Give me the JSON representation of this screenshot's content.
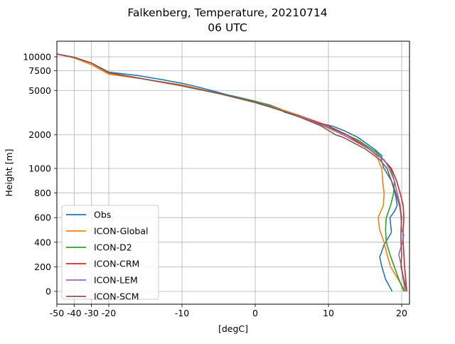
{
  "chart_data": {
    "type": "line",
    "title": "Falkenberg, Temperature, 20210714",
    "subtitle": "06 UTC",
    "xlabel": "[degC]",
    "ylabel": "Height [m]",
    "xlim": [
      -50,
      21
    ],
    "x_ticks": [
      -50,
      -40,
      -30,
      -20,
      -10,
      0,
      10,
      20
    ],
    "x_tick_labels": [
      "-50",
      "-40",
      "-30",
      "-20",
      "-10",
      "0",
      "10",
      "20"
    ],
    "y_ticks": [
      0,
      200,
      400,
      600,
      800,
      1000,
      2000,
      5000,
      7500,
      10000
    ],
    "y_tick_labels": [
      "0",
      "200",
      "400",
      "600",
      "800",
      "1000",
      "2000",
      "5000",
      "7500",
      "10000"
    ],
    "y_scale": "piecewise: linear 0-1000 m, logarithmic above 1000 m",
    "grid": true,
    "legend_position": "lower-left",
    "series": [
      {
        "name": "Obs",
        "color": "#1f77b4",
        "points": [
          [
            18.7,
            0
          ],
          [
            17.8,
            100
          ],
          [
            17.3,
            200
          ],
          [
            17.0,
            280
          ],
          [
            17.6,
            380
          ],
          [
            18.2,
            440
          ],
          [
            18.6,
            480
          ],
          [
            18.4,
            600
          ],
          [
            19.0,
            650
          ],
          [
            19.4,
            700
          ],
          [
            19.1,
            800
          ],
          [
            18.6,
            900
          ],
          [
            17.5,
            1020
          ],
          [
            17.4,
            1100
          ],
          [
            17.2,
            1200
          ],
          [
            17.3,
            1300
          ],
          [
            16.2,
            1500
          ],
          [
            14.0,
            1900
          ],
          [
            12.0,
            2200
          ],
          [
            10.5,
            2400
          ],
          [
            8.0,
            2600
          ],
          [
            6.0,
            2900
          ],
          [
            4.0,
            3200
          ],
          [
            3.5,
            3400
          ],
          [
            2.0,
            3700
          ],
          [
            0.0,
            4000
          ],
          [
            -2.0,
            4300
          ],
          [
            -4.0,
            4600
          ],
          [
            -6.0,
            5000
          ],
          [
            -8.0,
            5400
          ],
          [
            -10.0,
            5800
          ],
          [
            -13.0,
            6300
          ],
          [
            -16.0,
            6800
          ],
          [
            -20.0,
            7300
          ],
          [
            -30.0,
            8800
          ],
          [
            -40.0,
            9800
          ],
          [
            -50.0,
            10600
          ]
        ]
      },
      {
        "name": "ICON-Global",
        "color": "#ff7f0e",
        "points": [
          [
            20.5,
            0
          ],
          [
            19.5,
            100
          ],
          [
            18.5,
            200
          ],
          [
            18.0,
            300
          ],
          [
            17.6,
            400
          ],
          [
            17.0,
            500
          ],
          [
            16.8,
            600
          ],
          [
            17.5,
            700
          ],
          [
            17.6,
            800
          ],
          [
            17.4,
            900
          ],
          [
            17.3,
            1000
          ],
          [
            17.0,
            1100
          ],
          [
            16.6,
            1300
          ],
          [
            15.0,
            1600
          ],
          [
            12.5,
            2000
          ],
          [
            10.0,
            2400
          ],
          [
            6.0,
            3000
          ],
          [
            0.0,
            4000
          ],
          [
            -5.0,
            4700
          ],
          [
            -10.0,
            5600
          ],
          [
            -15.0,
            6300
          ],
          [
            -20.0,
            7000
          ],
          [
            -30.0,
            8500
          ],
          [
            -40.0,
            9800
          ],
          [
            -50.0,
            10600
          ]
        ]
      },
      {
        "name": "ICON-D2",
        "color": "#2ca02c",
        "points": [
          [
            20.3,
            0
          ],
          [
            19.6,
            100
          ],
          [
            19.0,
            200
          ],
          [
            18.4,
            300
          ],
          [
            17.9,
            400
          ],
          [
            17.8,
            500
          ],
          [
            17.9,
            600
          ],
          [
            18.5,
            700
          ],
          [
            18.9,
            800
          ],
          [
            19.0,
            900
          ],
          [
            18.5,
            1000
          ],
          [
            17.5,
            1200
          ],
          [
            16.5,
            1400
          ],
          [
            14.0,
            1800
          ],
          [
            11.0,
            2200
          ],
          [
            8.0,
            2600
          ],
          [
            5.0,
            3100
          ],
          [
            2.0,
            3600
          ],
          [
            0.0,
            4000
          ],
          [
            -5.0,
            4700
          ],
          [
            -10.0,
            5500
          ],
          [
            -15.0,
            6300
          ],
          [
            -20.0,
            7200
          ],
          [
            -30.0,
            8800
          ],
          [
            -40.0,
            9900
          ],
          [
            -50.0,
            10600
          ]
        ]
      },
      {
        "name": "ICON-CRM",
        "color": "#d62728",
        "points": [
          [
            20.7,
            0
          ],
          [
            20.4,
            200
          ],
          [
            20.2,
            400
          ],
          [
            20.2,
            500
          ],
          [
            20.3,
            600
          ],
          [
            20.2,
            700
          ],
          [
            19.8,
            800
          ],
          [
            19.3,
            900
          ],
          [
            18.6,
            1000
          ],
          [
            17.5,
            1200
          ],
          [
            15.5,
            1500
          ],
          [
            12.5,
            2000
          ],
          [
            10.0,
            2400
          ],
          [
            7.0,
            2800
          ],
          [
            3.0,
            3400
          ],
          [
            0.0,
            3900
          ],
          [
            -5.0,
            4700
          ],
          [
            -10.0,
            5500
          ],
          [
            -15.0,
            6300
          ],
          [
            -20.0,
            7200
          ],
          [
            -30.0,
            8800
          ],
          [
            -40.0,
            9900
          ],
          [
            -50.0,
            10600
          ]
        ]
      },
      {
        "name": "ICON-LEM",
        "color": "#9467bd",
        "points": [
          [
            20.5,
            0
          ],
          [
            20.2,
            100
          ],
          [
            20.0,
            200
          ],
          [
            19.6,
            300
          ],
          [
            20.1,
            400
          ],
          [
            20.3,
            460
          ],
          [
            20.0,
            500
          ],
          [
            19.9,
            600
          ],
          [
            19.8,
            700
          ],
          [
            19.4,
            800
          ],
          [
            19.0,
            900
          ],
          [
            18.3,
            1000
          ],
          [
            17.6,
            1200
          ],
          [
            15.5,
            1500
          ],
          [
            12.0,
            2000
          ],
          [
            10.0,
            2300
          ],
          [
            7.0,
            2800
          ],
          [
            3.0,
            3400
          ],
          [
            0.0,
            3900
          ],
          [
            -5.0,
            4700
          ],
          [
            -10.0,
            5500
          ],
          [
            -15.0,
            6300
          ],
          [
            -20.0,
            7200
          ],
          [
            -30.0,
            8800
          ],
          [
            -40.0,
            9900
          ],
          [
            -50.0,
            10600
          ]
        ]
      },
      {
        "name": "ICON-SCM",
        "color": "#8c564b",
        "points": [
          [
            20.7,
            0
          ],
          [
            20.3,
            100
          ],
          [
            19.9,
            200
          ],
          [
            20.0,
            300
          ],
          [
            19.9,
            400
          ],
          [
            19.9,
            500
          ],
          [
            20.0,
            600
          ],
          [
            19.7,
            700
          ],
          [
            19.2,
            800
          ],
          [
            18.6,
            900
          ],
          [
            18.0,
            1000
          ],
          [
            17.0,
            1200
          ],
          [
            15.0,
            1500
          ],
          [
            12.0,
            1900
          ],
          [
            11.0,
            2000
          ],
          [
            9.0,
            2400
          ],
          [
            6.0,
            2900
          ],
          [
            3.0,
            3400
          ],
          [
            0.0,
            3900
          ],
          [
            -5.0,
            4700
          ],
          [
            -10.0,
            5500
          ],
          [
            -15.0,
            6300
          ],
          [
            -20.0,
            7200
          ],
          [
            -30.0,
            8800
          ],
          [
            -40.0,
            9900
          ],
          [
            -50.0,
            10600
          ]
        ]
      }
    ]
  }
}
